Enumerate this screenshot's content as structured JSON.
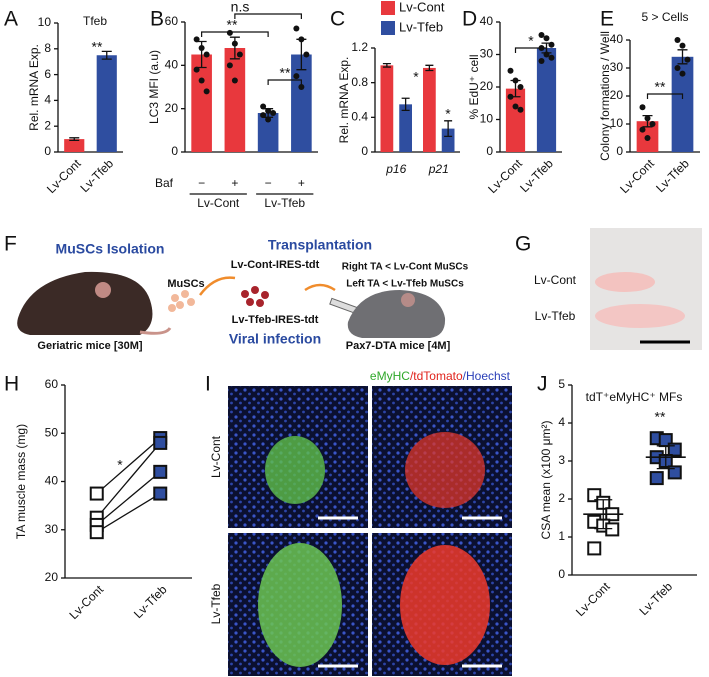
{
  "chart_data": [
    {
      "type": "bar",
      "title": "Tfeb",
      "ylabel": "Rel. mRNA Exp.",
      "categories": [
        "Lv-Cont",
        "Lv-Tfeb"
      ],
      "values": [
        1.0,
        7.5
      ],
      "errors": [
        0.1,
        0.3
      ],
      "colors": [
        "#e8383d",
        "#2f4ea0"
      ],
      "ylim": [
        0,
        10
      ],
      "yticks": [
        0,
        2,
        4,
        6,
        8,
        10
      ],
      "annotations": [
        "**"
      ]
    },
    {
      "type": "bar",
      "ylabel": "LC3 MFI (a.u)",
      "xlabel": "Baf",
      "categories": [
        "−",
        "+",
        "−",
        "+"
      ],
      "groups": [
        "Lv-Cont",
        "Lv-Tfeb"
      ],
      "values": [
        45,
        48,
        18,
        45
      ],
      "errors": [
        6,
        5,
        2,
        7
      ],
      "points": [
        [
          52,
          48,
          45,
          38,
          33,
          28
        ],
        [
          55,
          50,
          45,
          40,
          33
        ],
        [
          21,
          19,
          18,
          17,
          15
        ],
        [
          57,
          52,
          45,
          35,
          30
        ]
      ],
      "colors": [
        "#e8383d",
        "#e8383d",
        "#2f4ea0",
        "#2f4ea0"
      ],
      "ylim": [
        0,
        60
      ],
      "yticks": [
        0,
        20,
        40,
        60
      ],
      "annotations": [
        "n.s",
        "**",
        "**"
      ]
    },
    {
      "type": "bar",
      "ylabel": "Rel. mRNA Exp.",
      "categories": [
        "p16",
        "p21"
      ],
      "series": [
        {
          "name": "Lv-Cont",
          "color": "#e8383d",
          "values": [
            1.0,
            0.97
          ],
          "errors": [
            0.02,
            0.03
          ]
        },
        {
          "name": "Lv-Tfeb",
          "color": "#2f4ea0",
          "values": [
            0.55,
            0.27
          ],
          "errors": [
            0.07,
            0.09
          ]
        }
      ],
      "ylim": [
        0,
        1.2
      ],
      "yticks": [
        0,
        0.4,
        0.8,
        1.2
      ],
      "annotations": [
        "*",
        "*"
      ]
    },
    {
      "type": "bar",
      "ylabel": "% EdU⁺ cell",
      "categories": [
        "Lv-Cont",
        "Lv-Tfeb"
      ],
      "values": [
        19.5,
        32
      ],
      "errors": [
        2.5,
        1.5
      ],
      "points": [
        [
          25,
          22,
          20,
          17,
          14,
          13
        ],
        [
          36,
          35,
          33,
          32,
          30,
          29,
          28
        ]
      ],
      "colors": [
        "#e8383d",
        "#2f4ea0"
      ],
      "ylim": [
        0,
        40
      ],
      "yticks": [
        0,
        10,
        20,
        30,
        40
      ],
      "annotations": [
        "*"
      ]
    },
    {
      "type": "bar",
      "title": "5 > Cells",
      "ylabel": "Colony formations / Well",
      "categories": [
        "Lv-Cont",
        "Lv-Tfeb"
      ],
      "values": [
        11,
        34
      ],
      "errors": [
        2,
        2.5
      ],
      "points": [
        [
          16,
          12,
          10,
          8,
          5
        ],
        [
          40,
          38,
          33,
          30,
          28
        ]
      ],
      "colors": [
        "#e8383d",
        "#2f4ea0"
      ],
      "ylim": [
        0,
        40
      ],
      "yticks": [
        0,
        10,
        20,
        30,
        40
      ],
      "annotations": [
        "**"
      ]
    },
    {
      "type": "paired",
      "ylabel": "TA muscle mass (mg)",
      "categories": [
        "Lv-Cont",
        "Lv-Tfeb"
      ],
      "pairs": [
        [
          37.5,
          49
        ],
        [
          32.5,
          48
        ],
        [
          31,
          42
        ],
        [
          29.5,
          37.5
        ]
      ],
      "colors": [
        "#ffffff",
        "#2f4ea0"
      ],
      "ylim": [
        20,
        60
      ],
      "yticks": [
        20,
        30,
        40,
        50,
        60
      ],
      "annotations": [
        "*"
      ]
    },
    {
      "type": "dot",
      "title": "tdT⁺eMyHC⁺ MFs",
      "ylabel": "CSA mean (x100 μm²)",
      "categories": [
        "Lv-Cont",
        "Lv-Tfeb"
      ],
      "points": [
        [
          2.1,
          1.9,
          1.6,
          1.4,
          1.3,
          1.2,
          0.7
        ],
        [
          3.6,
          3.55,
          3.3,
          3.1,
          3.0,
          2.7,
          2.55
        ]
      ],
      "mean": [
        1.6,
        3.1
      ],
      "errors": [
        0.38,
        0.3
      ],
      "colors": [
        "#ffffff",
        "#2f4ea0"
      ],
      "ylim": [
        0,
        5
      ],
      "yticks": [
        0,
        1,
        2,
        3,
        4,
        5
      ],
      "annotations": [
        "**"
      ]
    }
  ],
  "panel_letters": [
    "A",
    "B",
    "C",
    "D",
    "E",
    "F",
    "G",
    "H",
    "I",
    "J"
  ],
  "schematic": {
    "isolation": "MuSCs Isolation",
    "transplantation": "Transplantation",
    "cells": "MuSCs",
    "cont_vector": "Lv-Cont-IRES-tdt",
    "tfeb_vector": "Lv-Tfeb-IRES-tdt",
    "right_ta": "Right TA < Lv-Cont MuSCs",
    "left_ta": "Left TA < Lv-Tfeb MuSCs",
    "donor": "Geriatric mice [30M]",
    "infection": "Viral infection",
    "recipient": "Pax7-DTA mice [4M]"
  },
  "photo": {
    "top": "Lv-Cont",
    "bottom": "Lv-Tfeb"
  },
  "imaging": {
    "stain_1": "eMyHC",
    "stain_2": "/tdTomato",
    "stain_3": "/Hoechst",
    "row_1": "Lv-Cont",
    "row_2": "Lv-Tfeb"
  }
}
